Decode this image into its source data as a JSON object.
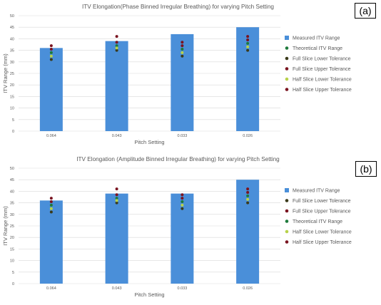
{
  "colors": {
    "bar": "#4A8FD9",
    "theoretical": "#1E7A3C",
    "full_lower": "#3A3A1A",
    "full_upper": "#7A1420",
    "half_lower": "#B8D24A",
    "half_upper": "#7A1420",
    "axis_text": "#595959",
    "grid": "#D9D9D9"
  },
  "panels": [
    {
      "id": "a",
      "label": "(a)"
    },
    {
      "id": "b",
      "label": "(b)"
    }
  ],
  "chart_data": [
    {
      "type": "bar",
      "title": "ITV Elongation(Phase Binned Irregular Breathing) for varying Pitch Setting",
      "xlabel": "Pitch Setting",
      "ylabel": "ITV Range (mm)",
      "ylim": [
        0,
        50
      ],
      "yticks": [
        0,
        5,
        10,
        15,
        20,
        25,
        30,
        35,
        40,
        45,
        50
      ],
      "grid": true,
      "legend_position": "right",
      "categories": [
        "0.064",
        "0.043",
        "0.033",
        "0.026"
      ],
      "bars": {
        "name": "Measured ITV Range",
        "values": [
          36,
          39,
          42,
          45
        ]
      },
      "markers": [
        {
          "name": "Theoretical ITV Range",
          "key": "theoretical",
          "values": [
            34,
            37,
            35.5,
            38
          ]
        },
        {
          "name": "Full Slice Lower Tolerance",
          "key": "full_lower",
          "values": [
            31,
            35,
            32.5,
            35
          ]
        },
        {
          "name": "Full Slice Upper Tolerance",
          "key": "full_upper",
          "values": [
            37,
            41,
            38.5,
            41
          ]
        },
        {
          "name": "Half Slice Lower Tolerance",
          "key": "half_lower",
          "values": [
            32.5,
            36,
            34,
            36.5
          ]
        },
        {
          "name": "Half Slice Upper Tolerance",
          "key": "half_upper",
          "values": [
            35.5,
            38.5,
            37,
            39.5
          ]
        }
      ]
    },
    {
      "type": "bar",
      "title": "ITV Elongation (Amplitude Binned Irregular Breathing) for varying Pitch Setting",
      "xlabel": "Pitch Setting",
      "ylabel": "ITV Range (mm)",
      "ylim": [
        0,
        50
      ],
      "yticks": [
        0,
        5,
        10,
        15,
        20,
        25,
        30,
        35,
        40,
        45,
        50
      ],
      "grid": true,
      "legend_position": "right",
      "categories": [
        "0.064",
        "0.043",
        "0.033",
        "0.026"
      ],
      "bars": {
        "name": "Measured ITV Range",
        "values": [
          36,
          39,
          39,
          45
        ]
      },
      "markers": [
        {
          "name": "Full Slice Lower Tolerance",
          "key": "full_lower",
          "values": [
            31,
            35,
            32.5,
            35
          ]
        },
        {
          "name": "Full Slice Upper Tolerance",
          "key": "full_upper",
          "values": [
            37,
            41,
            38.5,
            41
          ]
        },
        {
          "name": "Theoretical ITV Range",
          "key": "theoretical",
          "values": [
            34,
            37,
            35.5,
            38
          ]
        },
        {
          "name": "Half Slice Lower Tolerance",
          "key": "half_lower",
          "values": [
            32.5,
            36,
            34,
            36.5
          ]
        },
        {
          "name": "Half Slice Upper Tolerance",
          "key": "half_upper",
          "values": [
            35.5,
            38.5,
            37,
            39.5
          ]
        }
      ]
    }
  ]
}
